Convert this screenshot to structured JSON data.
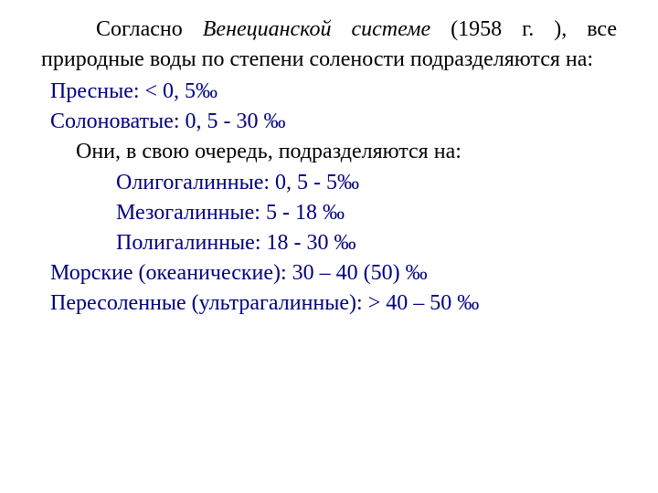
{
  "colors": {
    "text": "#000000",
    "accent": "#000080",
    "background": "#ffffff"
  },
  "typography": {
    "family": "Times New Roman",
    "size_pt": 18,
    "line_height": 1.38
  },
  "intro": {
    "pre": "Согласно ",
    "emph": "Венецианской системе",
    "post": " (1958 г. ), все природные воды по степени солености подразделяются на:"
  },
  "lines": {
    "fresh": "Пресные:   < 0, 5‰",
    "brackish": "Солоноватые: 0, 5 - 30 ‰",
    "sub_intro": "Они,  в свою очередь,  подразделяются на:",
    "oligo": "Олигогалинные: 0, 5 - 5‰",
    "meso": "Мезогалинные:   5 - 18 ‰",
    "poly": "Полигалинные:  18 - 30 ‰",
    "marine": "Морские (океанические): 30 – 40 (50) ‰",
    "hyper": "Пересоленные (ультрагалинные):  > 40 – 50 ‰"
  }
}
